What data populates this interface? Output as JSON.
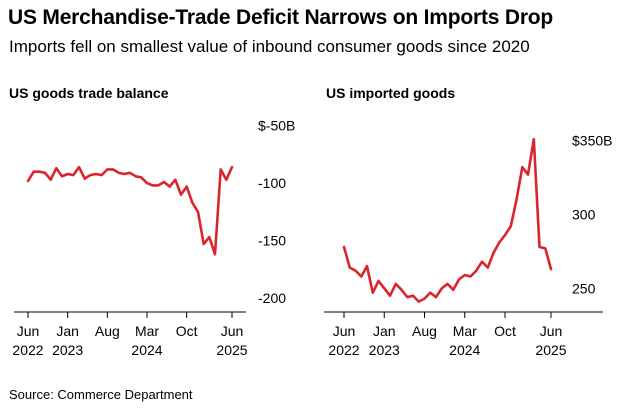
{
  "title": "US Merchandise-Trade Deficit Narrows on Imports Drop",
  "subtitle": "Imports fell on smallest value of inbound consumer goods since 2020",
  "source": "Source: Commerce Department",
  "colors": {
    "line": "#d9262c",
    "axis": "#000000"
  },
  "chart_data": [
    {
      "type": "line",
      "title": "US goods trade balance",
      "x": [
        "2022-06",
        "2022-07",
        "2022-08",
        "2022-09",
        "2022-10",
        "2022-11",
        "2022-12",
        "2023-01",
        "2023-02",
        "2023-03",
        "2023-04",
        "2023-05",
        "2023-06",
        "2023-07",
        "2023-08",
        "2023-09",
        "2023-10",
        "2023-11",
        "2023-12",
        "2024-01",
        "2024-02",
        "2024-03",
        "2024-04",
        "2024-05",
        "2024-06",
        "2024-07",
        "2024-08",
        "2024-09",
        "2024-10",
        "2024-11",
        "2024-12",
        "2025-01",
        "2025-02",
        "2025-03",
        "2025-04",
        "2025-05",
        "2025-06"
      ],
      "series": [
        {
          "values": [
            -98,
            -90,
            -90,
            -91,
            -97,
            -87,
            -94,
            -92,
            -93,
            -86,
            -96,
            -93,
            -92,
            -93,
            -88,
            -88,
            -91,
            -92,
            -91,
            -94,
            -95,
            -100,
            -102,
            -102,
            -99,
            -103,
            -97,
            -110,
            -103,
            -117,
            -125,
            -153,
            -147,
            -162,
            -88,
            -97,
            -86
          ]
        }
      ],
      "yticks": [
        {
          "value": -50,
          "label": "$-50B"
        },
        {
          "value": -100,
          "label": "-100"
        },
        {
          "value": -150,
          "label": "-150"
        },
        {
          "value": -200,
          "label": "-200"
        }
      ],
      "ylim": [
        -207,
        -45
      ],
      "xticks": [
        {
          "x": "2022-06",
          "label": "Jun",
          "year": "2022"
        },
        {
          "x": "2023-01",
          "label": "Jan",
          "year": "2023"
        },
        {
          "x": "2023-08",
          "label": "Aug",
          "year": ""
        },
        {
          "x": "2024-03",
          "label": "Mar",
          "year": "2024"
        },
        {
          "x": "2024-10",
          "label": "Oct",
          "year": ""
        },
        {
          "x": "2025-06",
          "label": "Jun",
          "year": "2025"
        }
      ],
      "grid": false
    },
    {
      "type": "line",
      "title": "US imported goods",
      "x": [
        "2022-06",
        "2022-07",
        "2022-08",
        "2022-09",
        "2022-10",
        "2022-11",
        "2022-12",
        "2023-01",
        "2023-02",
        "2023-03",
        "2023-04",
        "2023-05",
        "2023-06",
        "2023-07",
        "2023-08",
        "2023-09",
        "2023-10",
        "2023-11",
        "2023-12",
        "2024-01",
        "2024-02",
        "2024-03",
        "2024-04",
        "2024-05",
        "2024-06",
        "2024-07",
        "2024-08",
        "2024-09",
        "2024-10",
        "2024-11",
        "2024-12",
        "2025-01",
        "2025-02",
        "2025-03",
        "2025-04",
        "2025-05",
        "2025-06"
      ],
      "series": [
        {
          "values": [
            278,
            264,
            262,
            258,
            265,
            247,
            255,
            250,
            245,
            253,
            249,
            244,
            245,
            241,
            243,
            247,
            244,
            250,
            253,
            249,
            256,
            259,
            258,
            262,
            268,
            264,
            274,
            281,
            286,
            292,
            310,
            332,
            327,
            351,
            278,
            277,
            263
          ]
        }
      ],
      "yticks": [
        {
          "value": 350,
          "label": "$350B"
        },
        {
          "value": 300,
          "label": "300"
        },
        {
          "value": 250,
          "label": "250"
        }
      ],
      "ylim": [
        238,
        364
      ],
      "xticks": [
        {
          "x": "2022-06",
          "label": "Jun",
          "year": "2022"
        },
        {
          "x": "2023-01",
          "label": "Jan",
          "year": "2023"
        },
        {
          "x": "2023-08",
          "label": "Aug",
          "year": ""
        },
        {
          "x": "2024-03",
          "label": "Mar",
          "year": "2024"
        },
        {
          "x": "2024-10",
          "label": "Oct",
          "year": ""
        },
        {
          "x": "2025-06",
          "label": "Jun",
          "year": "2025"
        }
      ],
      "grid": false
    }
  ]
}
